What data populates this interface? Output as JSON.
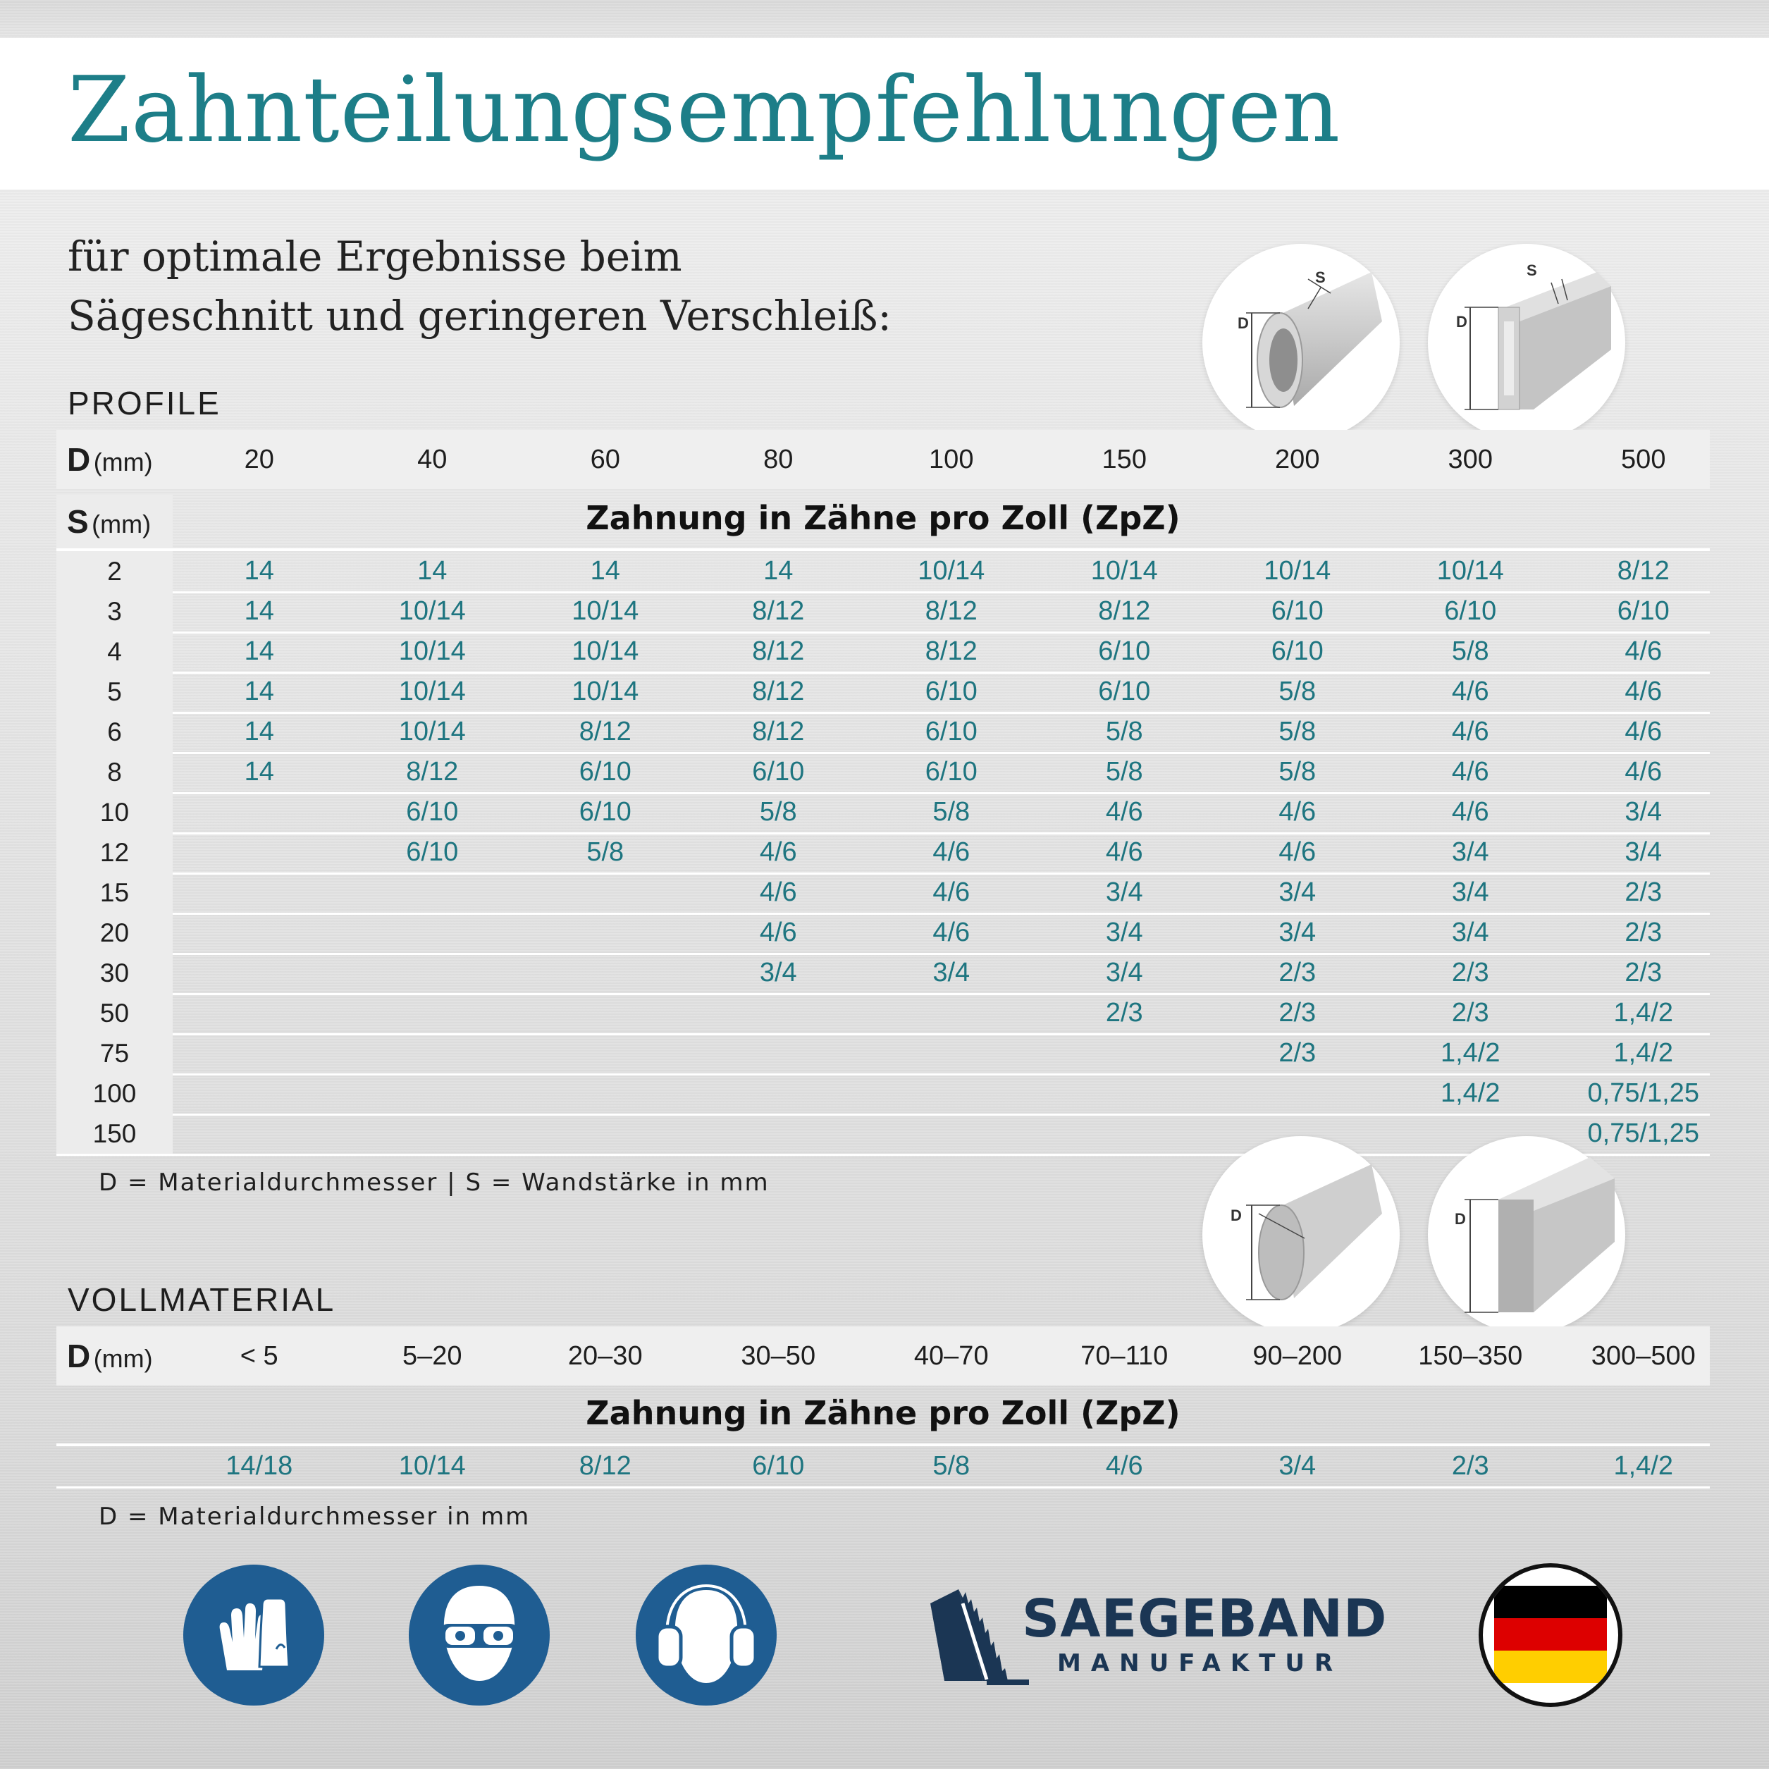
{
  "title": "Zahnteilungsempfehlungen",
  "intro": {
    "line1": "für optimale Ergebnisse beim",
    "line2": "Sägeschnitt und geringeren Verschleiß:"
  },
  "profile": {
    "heading": "PROFILE",
    "d_label": "D",
    "d_unit": "(mm)",
    "s_label": "S",
    "s_unit": "(mm)",
    "d_values": [
      "20",
      "40",
      "60",
      "80",
      "100",
      "150",
      "200",
      "300",
      "500"
    ],
    "zpz_heading": "Zahnung in Zähne pro Zoll (ZpZ)",
    "rows": [
      {
        "s": "2",
        "v": [
          "14",
          "14",
          "14",
          "14",
          "10/14",
          "10/14",
          "10/14",
          "10/14",
          "8/12"
        ]
      },
      {
        "s": "3",
        "v": [
          "14",
          "10/14",
          "10/14",
          "8/12",
          "8/12",
          "8/12",
          "6/10",
          "6/10",
          "6/10"
        ]
      },
      {
        "s": "4",
        "v": [
          "14",
          "10/14",
          "10/14",
          "8/12",
          "8/12",
          "6/10",
          "6/10",
          "5/8",
          "4/6"
        ]
      },
      {
        "s": "5",
        "v": [
          "14",
          "10/14",
          "10/14",
          "8/12",
          "6/10",
          "6/10",
          "5/8",
          "4/6",
          "4/6"
        ]
      },
      {
        "s": "6",
        "v": [
          "14",
          "10/14",
          "8/12",
          "8/12",
          "6/10",
          "5/8",
          "5/8",
          "4/6",
          "4/6"
        ]
      },
      {
        "s": "8",
        "v": [
          "14",
          "8/12",
          "6/10",
          "6/10",
          "6/10",
          "5/8",
          "5/8",
          "4/6",
          "4/6"
        ]
      },
      {
        "s": "10",
        "v": [
          "",
          "6/10",
          "6/10",
          "5/8",
          "5/8",
          "4/6",
          "4/6",
          "4/6",
          "3/4"
        ]
      },
      {
        "s": "12",
        "v": [
          "",
          "6/10",
          "5/8",
          "4/6",
          "4/6",
          "4/6",
          "4/6",
          "3/4",
          "3/4"
        ]
      },
      {
        "s": "15",
        "v": [
          "",
          "",
          "",
          "4/6",
          "4/6",
          "3/4",
          "3/4",
          "3/4",
          "2/3"
        ]
      },
      {
        "s": "20",
        "v": [
          "",
          "",
          "",
          "4/6",
          "4/6",
          "3/4",
          "3/4",
          "3/4",
          "2/3"
        ]
      },
      {
        "s": "30",
        "v": [
          "",
          "",
          "",
          "3/4",
          "3/4",
          "3/4",
          "2/3",
          "2/3",
          "2/3"
        ]
      },
      {
        "s": "50",
        "v": [
          "",
          "",
          "",
          "",
          "",
          "2/3",
          "2/3",
          "2/3",
          "1,4/2"
        ]
      },
      {
        "s": "75",
        "v": [
          "",
          "",
          "",
          "",
          "",
          "",
          "2/3",
          "1,4/2",
          "1,4/2"
        ]
      },
      {
        "s": "100",
        "v": [
          "",
          "",
          "",
          "",
          "",
          "",
          "",
          "1,4/2",
          "0,75/1,25"
        ]
      },
      {
        "s": "150",
        "v": [
          "",
          "",
          "",
          "",
          "",
          "",
          "",
          "",
          "0,75/1,25"
        ]
      }
    ],
    "note": "D = Materialdurchmesser | S = Wandstärke in mm",
    "fig_labels": {
      "d": "D",
      "s": "S"
    }
  },
  "vollmaterial": {
    "heading": "VOLLMATERIAL",
    "d_label": "D",
    "d_unit": "(mm)",
    "d_values": [
      "< 5",
      "5–20",
      "20–30",
      "30–50",
      "40–70",
      "70–110",
      "90–200",
      "150–350",
      "300–500"
    ],
    "zpz_heading": "Zahnung in Zähne pro Zoll (ZpZ)",
    "values": [
      "14/18",
      "10/14",
      "8/12",
      "6/10",
      "5/8",
      "4/6",
      "3/4",
      "2/3",
      "1,4/2"
    ],
    "note": "D = Materialdurchmesser in mm",
    "fig_labels": {
      "d": "D"
    }
  },
  "footer": {
    "icons": [
      "gloves-icon",
      "safety-goggles-icon",
      "ear-protection-icon"
    ],
    "logo_main": "SAEGEBAND",
    "logo_sub": "MANUFAKTUR",
    "flag": "germany-flag-icon"
  },
  "colors": {
    "accent": "#1d7e88",
    "value_text": "#1e7580",
    "safety_blue": "#1f5d92",
    "logo_navy": "#1b3654"
  }
}
